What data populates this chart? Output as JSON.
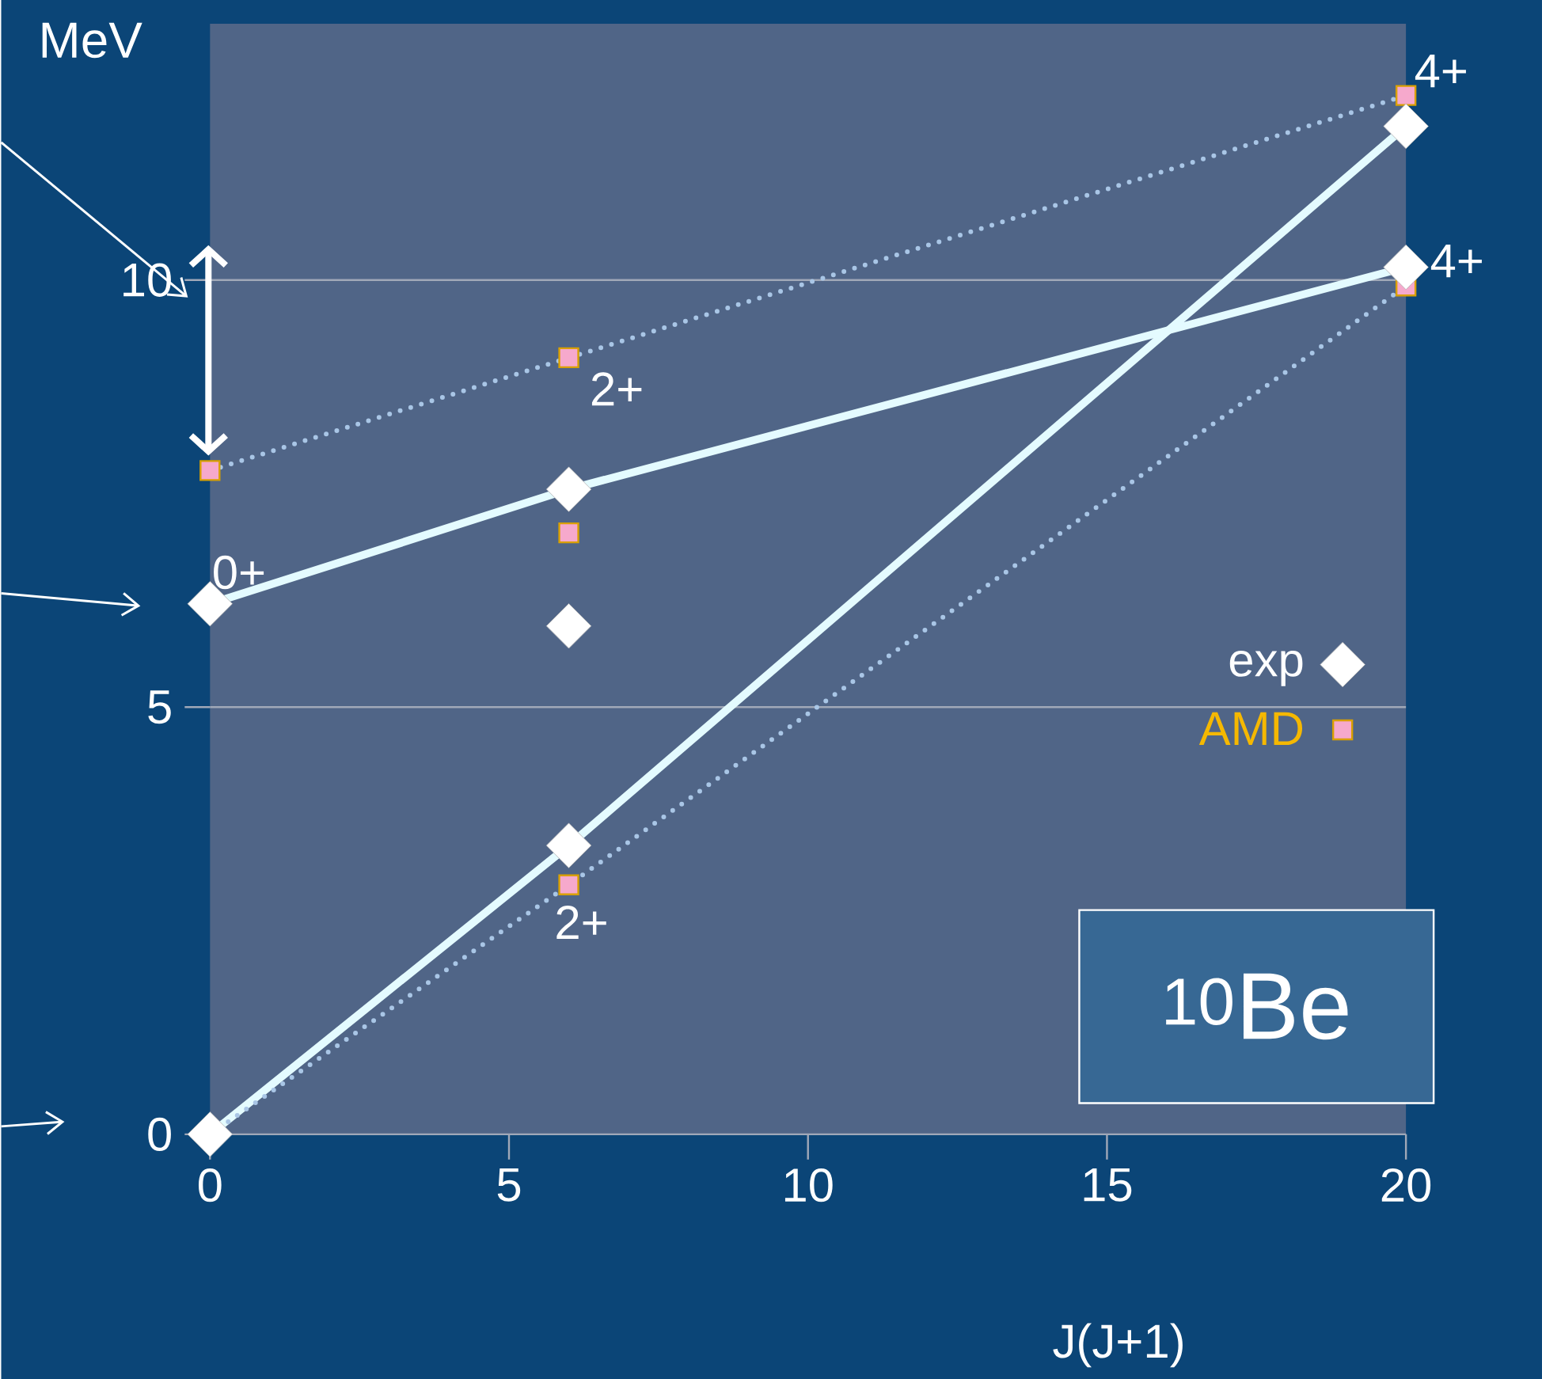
{
  "chart_data": {
    "type": "scatter",
    "xlabel": "J(J+1)",
    "ylabel": "MeV",
    "xlim": [
      0,
      20
    ],
    "ylim": [
      0,
      13
    ],
    "xticks": [
      0,
      5,
      10,
      15,
      20
    ],
    "yticks": [
      0,
      5,
      10
    ],
    "grid": "y",
    "legend": "right",
    "series": [
      {
        "type": "line",
        "color": "#e4fbff",
        "line_style": "solid",
        "x": [
          0,
          6,
          20
        ],
        "values": [
          0,
          3.38,
          11.8
        ]
      },
      {
        "type": "line",
        "color": "#e4fbff",
        "line_style": "solid",
        "x": [
          0,
          6,
          20
        ],
        "values": [
          6.21,
          7.55,
          10.15
        ]
      },
      {
        "type": "line",
        "color": "#a9c6e6",
        "line_style": "dotted",
        "x": [
          0,
          6,
          20
        ],
        "values": [
          7.77,
          9.09,
          12.16
        ]
      },
      {
        "type": "line",
        "color": "#a9c6e6",
        "line_style": "dotted",
        "x": [
          0,
          6,
          20
        ],
        "values": [
          0,
          2.92,
          9.93
        ]
      },
      {
        "name": "AMD",
        "color": "#f6a9cc",
        "marker": "square",
        "x": [
          0,
          6,
          20,
          6,
          6,
          20
        ],
        "values": [
          7.77,
          9.09,
          12.16,
          7.04,
          2.92,
          9.93
        ]
      },
      {
        "name": "exp",
        "color": "#ffffff",
        "marker": "diamond",
        "x": [
          0,
          6,
          20,
          0,
          6,
          20,
          6
        ],
        "values": [
          0,
          3.38,
          11.8,
          6.21,
          7.55,
          10.15,
          5.95
        ]
      }
    ],
    "annotations": [
      {
        "text": "0+",
        "x": 0,
        "y": 6.21
      },
      {
        "text": "2+",
        "x": 6,
        "y": 9.09
      },
      {
        "text": "2+",
        "x": 6,
        "y": 2.92
      },
      {
        "text": "4+",
        "x": 20,
        "y": 12.16
      },
      {
        "text": "4+",
        "x": 20,
        "y": 10.15
      },
      "$^{10}$Be"
    ]
  }
}
